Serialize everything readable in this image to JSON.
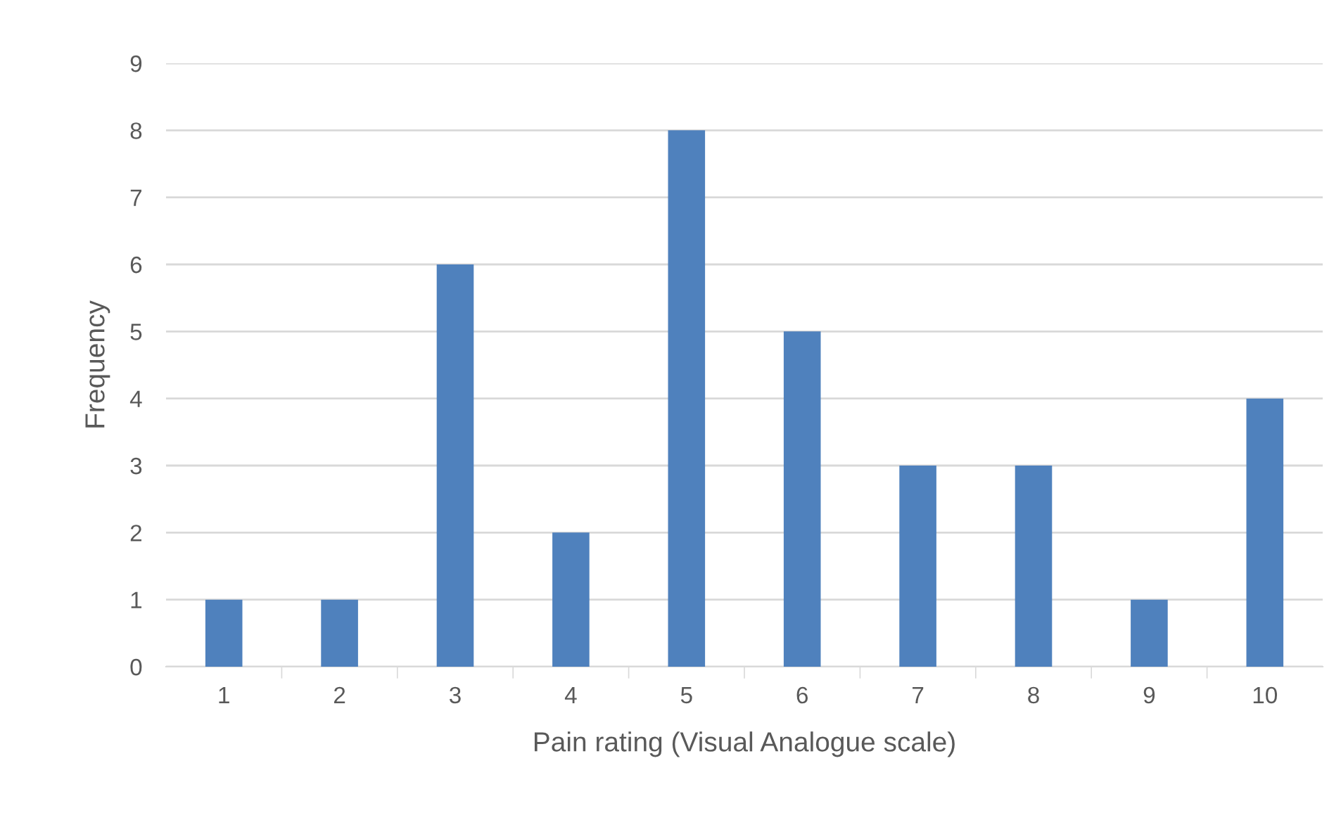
{
  "chart_data": {
    "type": "bar",
    "xlabel": "Pain rating (Visual Analogue scale)",
    "ylabel": "Frequency",
    "categories": [
      "1",
      "2",
      "3",
      "4",
      "5",
      "6",
      "7",
      "8",
      "9",
      "10"
    ],
    "values": [
      1,
      1,
      6,
      2,
      8,
      5,
      3,
      3,
      1,
      4
    ],
    "color": "#4f81bd",
    "ylim": [
      0,
      9
    ],
    "yticks": [
      0,
      1,
      2,
      3,
      4,
      5,
      6,
      7,
      8,
      9
    ],
    "grid": "y",
    "legend": false
  }
}
